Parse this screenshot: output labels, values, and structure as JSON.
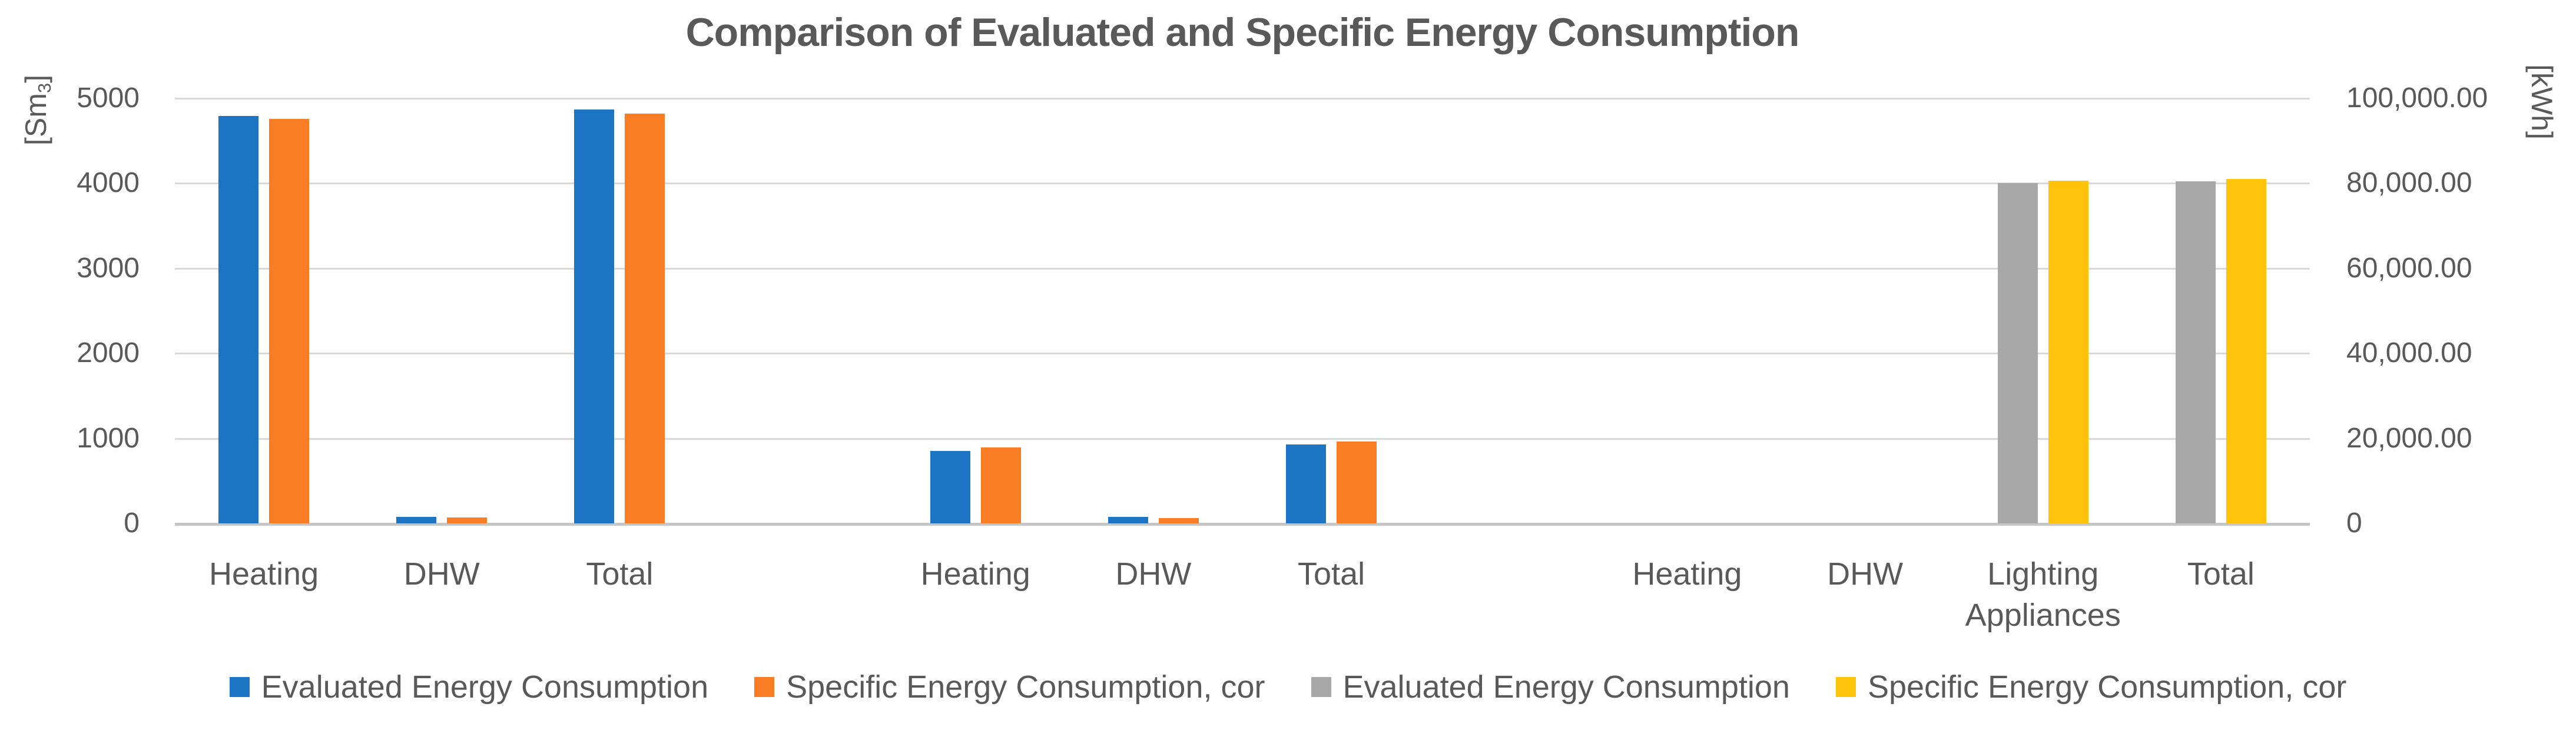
{
  "title": "Comparison of Evaluated and Specific Energy Consumption",
  "axes": {
    "left": {
      "unit_prefix": "[Sm",
      "unit_sub": "3",
      "unit_suffix": "]",
      "ticks": [
        "5000",
        "4000",
        "3000",
        "2000",
        "1000",
        "0"
      ]
    },
    "right": {
      "unit": "[kWh]",
      "ticks": [
        "100,000.00",
        "80,000.00",
        "60,000.00",
        "40,000.00",
        "20,000.00",
        "0"
      ]
    }
  },
  "legend": {
    "entries": [
      {
        "label": "Evaluated Energy Consumption",
        "color": "#1d73c4"
      },
      {
        "label": "Specific Energy Consumption, cor",
        "color": "#fa7c24"
      },
      {
        "label": "Evaluated Energy Consumption",
        "color": "#a8a8a8"
      },
      {
        "label": "Specific Energy Consumption, cor",
        "color": "#ffc30b"
      }
    ]
  },
  "chart_data": {
    "type": "bar",
    "title": "Comparison of Evaluated and Specific Energy Consumption",
    "left_axis": {
      "label": "[Sm3]",
      "range": [
        0,
        5000
      ],
      "tick_step": 1000
    },
    "right_axis": {
      "label": "[kWh]",
      "range": [
        0,
        100000
      ],
      "tick_step": 20000
    },
    "grid": true,
    "legend_position": "bottom",
    "categories": [
      "Heating",
      "DHW",
      "Total",
      "",
      "Heating",
      "DHW",
      "Total",
      "",
      "Heating",
      "DHW",
      "Lighting Appliances",
      "Total"
    ],
    "series": [
      {
        "name": "Evaluated Energy Consumption",
        "color": "#1d73c4",
        "axis": "left",
        "values": [
          4790,
          75,
          4865,
          null,
          855,
          75,
          925,
          null,
          null,
          null,
          null,
          null
        ]
      },
      {
        "name": "Specific Energy Consumption, cor",
        "color": "#fa7c24",
        "axis": "left",
        "values": [
          4755,
          70,
          4820,
          null,
          895,
          65,
          965,
          null,
          null,
          null,
          null,
          null
        ]
      },
      {
        "name": "Evaluated Energy Consumption",
        "color": "#a8a8a8",
        "axis": "right",
        "values": [
          null,
          null,
          null,
          null,
          null,
          null,
          null,
          null,
          0,
          0,
          80100,
          80500
        ]
      },
      {
        "name": "Specific Energy Consumption, cor",
        "color": "#ffc30b",
        "axis": "right",
        "values": [
          null,
          null,
          null,
          null,
          null,
          null,
          null,
          null,
          0,
          0,
          80600,
          81000
        ]
      }
    ]
  }
}
